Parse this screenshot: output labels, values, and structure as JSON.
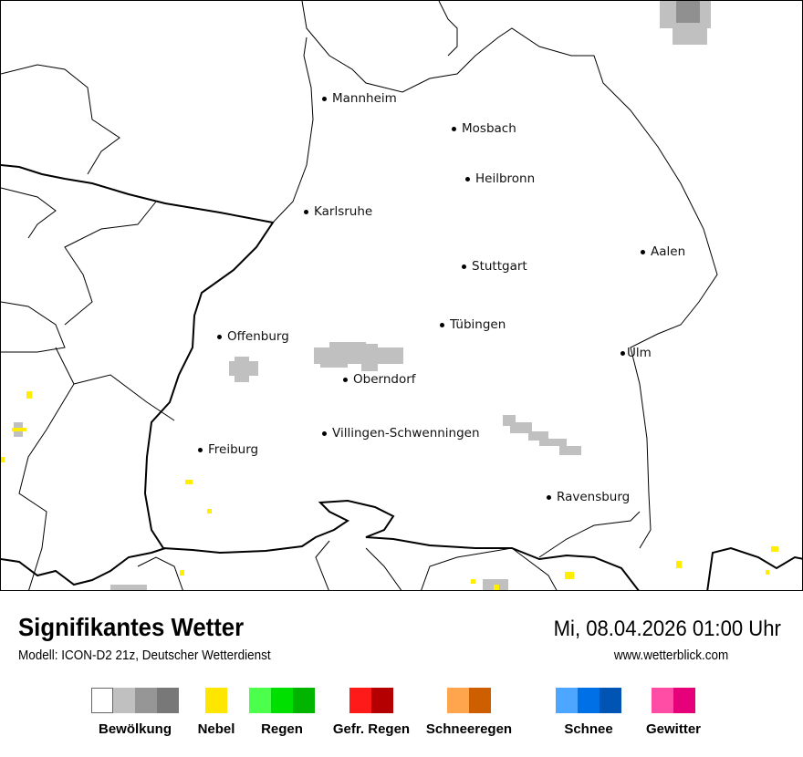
{
  "map": {
    "cities": [
      {
        "name": "Mannheim"
      },
      {
        "name": "Mosbach"
      },
      {
        "name": "Heilbronn"
      },
      {
        "name": "Karlsruhe"
      },
      {
        "name": "Aalen"
      },
      {
        "name": "Stuttgart"
      },
      {
        "name": "Tübingen"
      },
      {
        "name": "Offenburg"
      },
      {
        "name": "Ulm"
      },
      {
        "name": "Oberndorf"
      },
      {
        "name": "Villingen-Schwenningen"
      },
      {
        "name": "Freiburg"
      },
      {
        "name": "Ravensburg"
      }
    ],
    "colors": {
      "cloud": "#c0c0c0",
      "cloud_dark": "#909090",
      "fog": "#ffee00",
      "border": "#000000"
    }
  },
  "header": {
    "title": "Signifikantes Wetter",
    "subtitle": "Modell: ICON-D2 21z, Deutscher Wetterdienst",
    "datetime": "Mi, 08.04.2026 01:00 Uhr",
    "website": "www.wetterblick.com"
  },
  "legend": [
    {
      "label": "Bewölkung",
      "colors": [
        "#ffffff",
        "#c0c0c0",
        "#969696",
        "#787878"
      ]
    },
    {
      "label": "Nebel",
      "colors": [
        "#ffe600"
      ]
    },
    {
      "label": "Regen",
      "colors": [
        "#4dff4d",
        "#00e000",
        "#00b400"
      ]
    },
    {
      "label": "Gefr. Regen",
      "colors": [
        "#ff1a1a",
        "#b40000"
      ]
    },
    {
      "label": "Schneeregen",
      "colors": [
        "#ffa54d",
        "#cd5f00"
      ]
    },
    {
      "label": "Schnee",
      "colors": [
        "#4da6ff",
        "#0070e6",
        "#0055b4"
      ]
    },
    {
      "label": "Gewitter",
      "colors": [
        "#ff4da6",
        "#e6007a"
      ]
    }
  ]
}
